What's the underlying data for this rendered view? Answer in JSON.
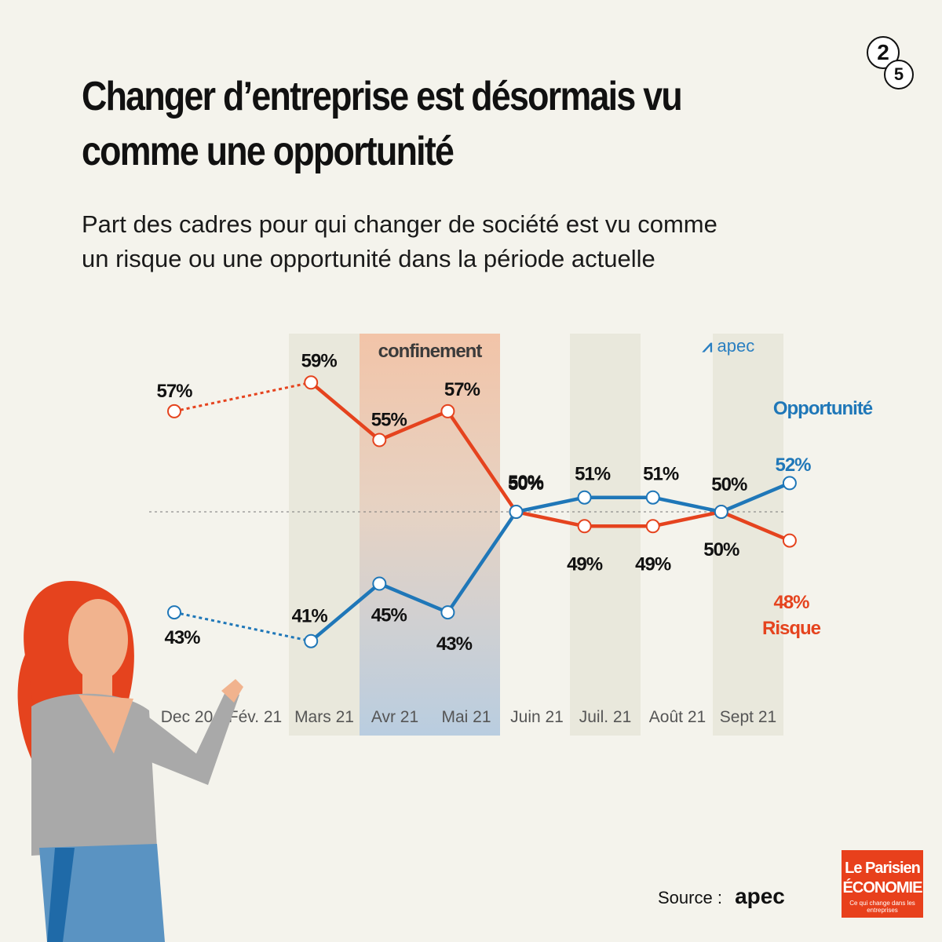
{
  "pager": {
    "current": "2",
    "total": "5"
  },
  "header": {
    "title_lines": [
      "Changer d’entreprise est désormais vu",
      "comme une opportunité"
    ],
    "subtitle_lines": [
      "Part des cadres pour qui changer de société est vu comme",
      "un risque ou une opportunité dans la période actuelle"
    ]
  },
  "chart_data": {
    "type": "line",
    "categories": [
      "Dec 20",
      "Fév. 21",
      "Mars 21",
      "Avr 21",
      "Mai 21",
      "Juin 21",
      "Juil. 21",
      "Août 21",
      "Sept 21"
    ],
    "ylim": [
      35,
      65
    ],
    "reference_line": 50,
    "series": [
      {
        "name": "Risque",
        "color": "#e5431e",
        "x": [
          0,
          2,
          3,
          4,
          5,
          6,
          7,
          8,
          9
        ],
        "values": [
          57,
          59,
          55,
          57,
          50,
          49,
          49,
          50,
          48
        ],
        "labels": [
          "57%",
          "59%",
          "55%",
          "57%",
          "50%",
          "49%",
          "49%",
          "50%",
          ""
        ],
        "dashed_until_index": 1
      },
      {
        "name": "Opportunité",
        "color": "#1f77b8",
        "x": [
          0,
          2,
          3,
          4,
          5,
          6,
          7,
          8,
          9
        ],
        "values": [
          43,
          41,
          45,
          43,
          50,
          51,
          51,
          50,
          52
        ],
        "labels": [
          "43%",
          "41%",
          "45%",
          "43%",
          "50%",
          "51%",
          "51%",
          "50%",
          ""
        ],
        "dashed_until_index": 1
      }
    ],
    "final_labels": {
      "opportunite_name": "Opportunité",
      "opportunite_value": "52%",
      "risque_name": "Risque",
      "risque_value": "48%"
    },
    "shaded_periods": [
      "Mars 21",
      "Juil. 21",
      "Sept 21"
    ],
    "annotation": {
      "label": "confinement",
      "from": "Avr 21",
      "to": "Mai 21"
    }
  },
  "chart_logo": "apec",
  "footer": {
    "source_label": "Source :",
    "source_name": "apec"
  },
  "brand": {
    "line1": "Le Parisien",
    "line2": "ÉCONOMIE",
    "tagline": "Ce qui change dans les entreprises"
  },
  "colors": {
    "background": "#f4f3ec",
    "risk": "#e5431e",
    "opportunity": "#1f77b8",
    "brand": "#e8401c"
  }
}
